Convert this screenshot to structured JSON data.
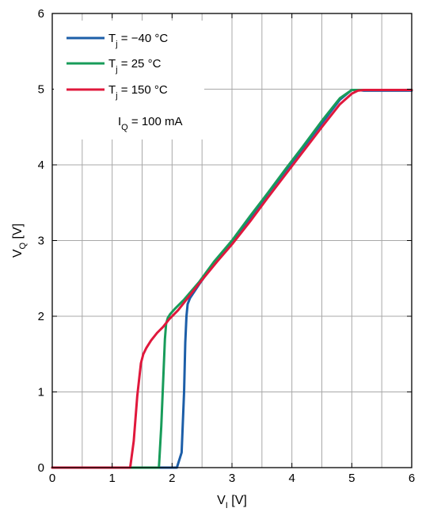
{
  "chart_data": {
    "type": "line",
    "title": "",
    "xlabel": {
      "main": "V",
      "sub": "I",
      "unit": " [V]"
    },
    "ylabel": {
      "main": "V",
      "sub": "Q",
      "unit": " [V]"
    },
    "xlim": [
      0,
      6
    ],
    "ylim": [
      0,
      6
    ],
    "xticks": [
      0,
      1,
      2,
      3,
      4,
      5,
      6
    ],
    "yticks": [
      0,
      1,
      2,
      3,
      4,
      5,
      6
    ],
    "xtick_labels": [
      "0",
      "1",
      "2",
      "3",
      "4",
      "5",
      "6"
    ],
    "ytick_labels": [
      "0",
      "1",
      "2",
      "3",
      "4",
      "5",
      "6"
    ],
    "grid": true,
    "minor_grid_x_step": 0.5,
    "legend_position": "top-left",
    "annotation": {
      "main": "I",
      "sub": "Q",
      "rest": " = 100 mA"
    },
    "series": [
      {
        "name": {
          "main": "T",
          "sub": "j",
          "rest": " = −40 °C"
        },
        "color": "#1c5ea8",
        "x": [
          0,
          2.08,
          2.16,
          2.2,
          2.22,
          2.24,
          2.26,
          2.3,
          2.45,
          2.7,
          3.0,
          3.3,
          3.6,
          3.9,
          4.2,
          4.5,
          4.8,
          5.0,
          5.1,
          5.2,
          5.4,
          6.0
        ],
        "y": [
          0,
          0,
          0.2,
          1.0,
          1.65,
          2.0,
          2.16,
          2.24,
          2.42,
          2.7,
          2.99,
          3.3,
          3.62,
          3.93,
          4.24,
          4.55,
          4.86,
          4.99,
          4.99,
          4.98,
          4.98,
          4.98
        ]
      },
      {
        "name": {
          "main": "T",
          "sub": "j",
          "rest": " = 25 °C"
        },
        "color": "#189c5a",
        "x": [
          0,
          1.78,
          1.82,
          1.86,
          1.88,
          1.9,
          1.93,
          1.97,
          2.05,
          2.2,
          2.45,
          2.7,
          3.0,
          3.3,
          3.6,
          3.9,
          4.2,
          4.5,
          4.8,
          5.0,
          5.1,
          5.2,
          6.0
        ],
        "y": [
          0,
          0,
          0.55,
          1.3,
          1.7,
          1.9,
          1.98,
          2.03,
          2.1,
          2.22,
          2.45,
          2.72,
          3.0,
          3.32,
          3.63,
          3.95,
          4.26,
          4.58,
          4.88,
          4.99,
          4.99,
          4.99,
          4.99
        ]
      },
      {
        "name": {
          "main": "T",
          "sub": "j",
          "rest": " = 150 °C"
        },
        "color": "#e0183c",
        "x": [
          0,
          1.3,
          1.36,
          1.42,
          1.48,
          1.52,
          1.57,
          1.65,
          1.75,
          1.85,
          1.95,
          2.1,
          2.3,
          2.5,
          2.75,
          3.0,
          3.3,
          3.6,
          3.9,
          4.2,
          4.5,
          4.8,
          5.0,
          5.1,
          5.2,
          5.4,
          6.0
        ],
        "y": [
          0,
          0,
          0.35,
          0.95,
          1.38,
          1.5,
          1.58,
          1.68,
          1.78,
          1.86,
          1.96,
          2.08,
          2.28,
          2.48,
          2.72,
          2.95,
          3.25,
          3.57,
          3.88,
          4.19,
          4.5,
          4.8,
          4.94,
          4.98,
          4.99,
          4.99,
          4.99
        ]
      }
    ]
  }
}
